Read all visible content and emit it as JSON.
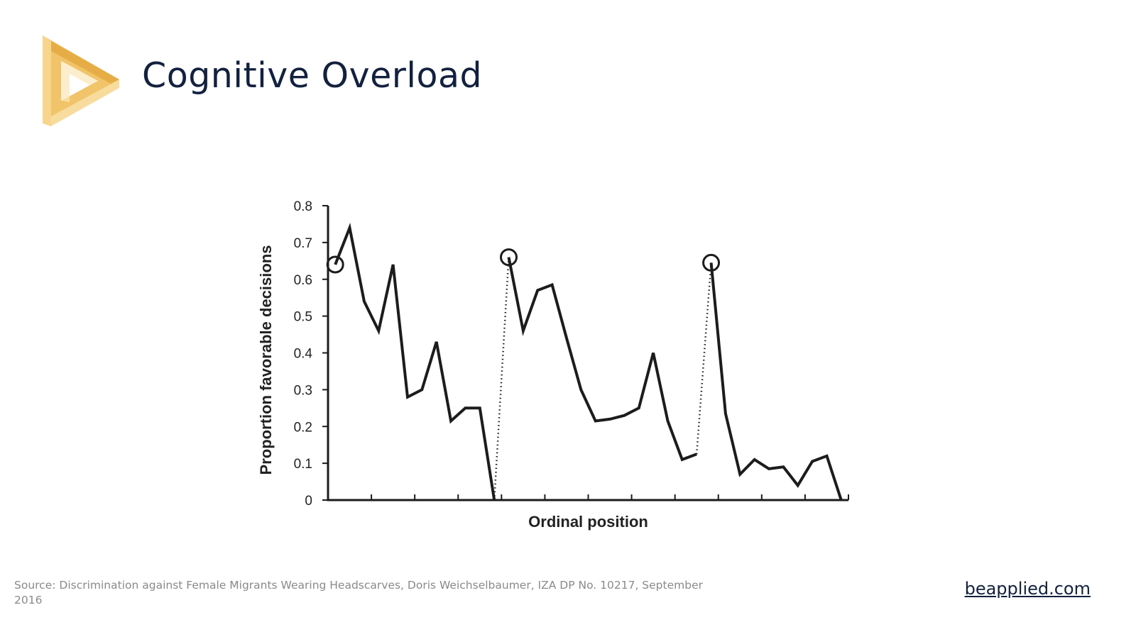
{
  "slide": {
    "title": "Cognitive Overload",
    "source_text": "Source: Discrimination against Female Migrants Wearing Headscarves, Doris Weichselbaumer, IZA DP No. 10217, September 2016",
    "site_link": "beapplied.com"
  },
  "logo": {
    "icon": "play-triangle-logo-icon",
    "colors": {
      "light": "#f7dc9e",
      "mid": "#f1c46a",
      "dark": "#e6ad46"
    }
  },
  "chart_data": {
    "type": "line",
    "title": "",
    "xlabel": "Ordinal position",
    "ylabel": "Proportion favorable decisions",
    "ylim": [
      0,
      0.8
    ],
    "yticks": [
      "0",
      "0.1",
      "0.2",
      "0.3",
      "0.4",
      "0.5",
      "0.6",
      "0.7",
      "0.8"
    ],
    "xlim": [
      0,
      36
    ],
    "x_tick_count": 12,
    "grid": false,
    "legend": "none",
    "line_color": "#1c1c1c",
    "segments": [
      {
        "style": "solid",
        "points": [
          [
            0.5,
            0.64
          ],
          [
            1.5,
            0.74
          ],
          [
            2.5,
            0.54
          ],
          [
            3.5,
            0.46
          ],
          [
            4.5,
            0.64
          ],
          [
            5.5,
            0.28
          ],
          [
            6.5,
            0.3
          ],
          [
            7.5,
            0.43
          ],
          [
            8.5,
            0.215
          ],
          [
            9.5,
            0.25
          ],
          [
            10.5,
            0.25
          ],
          [
            11.5,
            0.0
          ]
        ]
      },
      {
        "style": "dotted",
        "points": [
          [
            11.5,
            0.0
          ],
          [
            12.5,
            0.66
          ]
        ]
      },
      {
        "style": "solid",
        "points": [
          [
            12.5,
            0.66
          ],
          [
            13.5,
            0.46
          ],
          [
            14.5,
            0.57
          ],
          [
            15.5,
            0.585
          ],
          [
            16.5,
            0.44
          ],
          [
            17.5,
            0.3
          ],
          [
            18.5,
            0.215
          ],
          [
            19.5,
            0.22
          ],
          [
            20.5,
            0.23
          ],
          [
            21.5,
            0.25
          ],
          [
            22.5,
            0.4
          ],
          [
            23.5,
            0.215
          ],
          [
            24.5,
            0.11
          ],
          [
            25.5,
            0.125
          ]
        ]
      },
      {
        "style": "dotted",
        "points": [
          [
            25.5,
            0.125
          ],
          [
            26.5,
            0.645
          ]
        ]
      },
      {
        "style": "solid",
        "points": [
          [
            26.5,
            0.645
          ],
          [
            27.5,
            0.235
          ],
          [
            28.5,
            0.07
          ],
          [
            29.5,
            0.11
          ],
          [
            30.5,
            0.085
          ],
          [
            31.5,
            0.09
          ],
          [
            32.5,
            0.04
          ],
          [
            33.5,
            0.105
          ],
          [
            34.5,
            0.12
          ],
          [
            35.5,
            0.0
          ]
        ]
      }
    ],
    "circled_points": [
      [
        0.5,
        0.64
      ],
      [
        12.5,
        0.66
      ],
      [
        26.5,
        0.645
      ]
    ]
  }
}
